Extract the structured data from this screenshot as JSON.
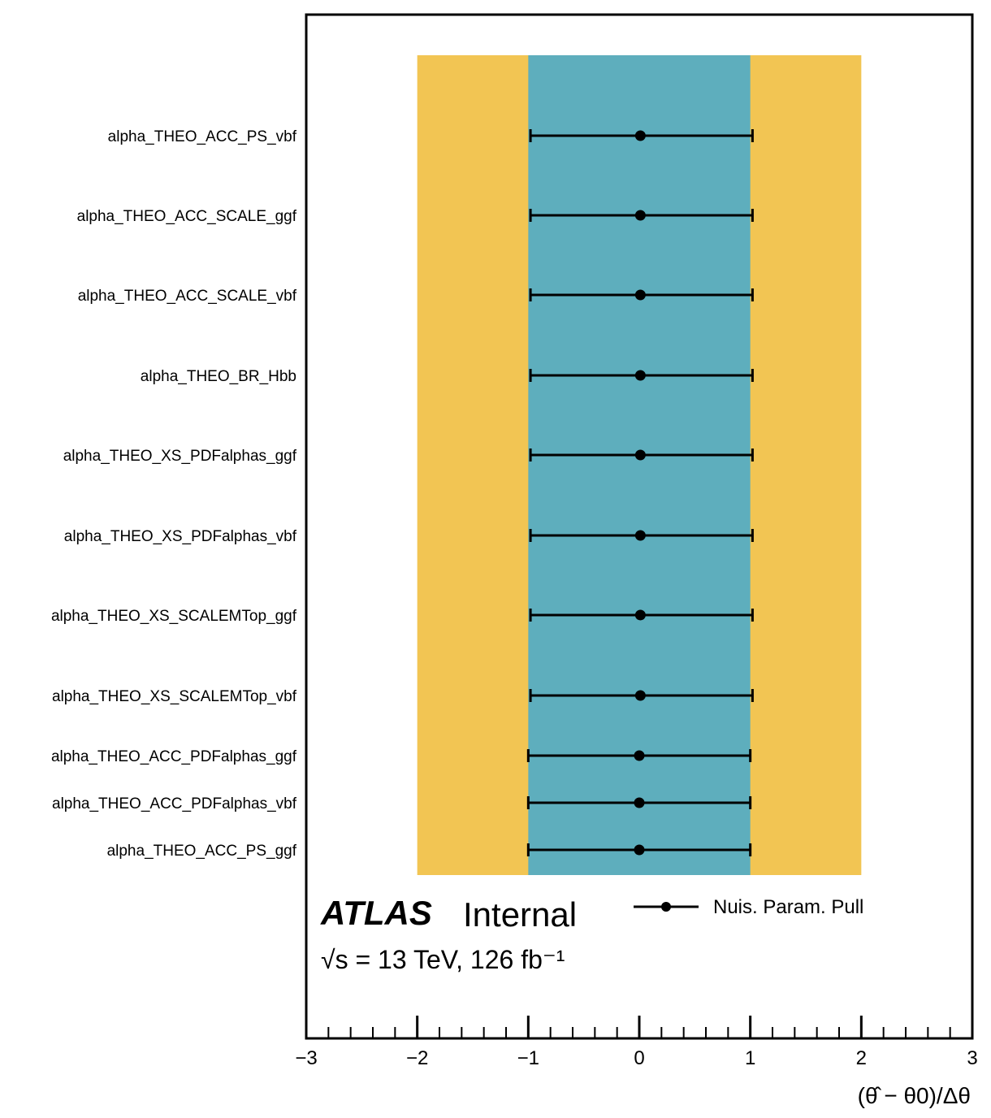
{
  "chart_data": {
    "type": "scatter",
    "xlim": [
      -3,
      3
    ],
    "xticks": [
      "−3",
      "−2",
      "−1",
      "0",
      "1",
      "2",
      "3"
    ],
    "xlabel": "(θ̂ − θ0)/Δθ",
    "bands": [
      {
        "range": [
          -2,
          2
        ],
        "color": "#f2c553"
      },
      {
        "range": [
          -1,
          1
        ],
        "color": "#5eaebd"
      }
    ],
    "series": [
      {
        "name": "Nuis. Param. Pull",
        "color": "#000000"
      }
    ],
    "parameters": [
      {
        "name": "alpha_THEO_ACC_PS_vbf",
        "pull": 0.01,
        "err_low": -0.99,
        "err_high": 1.01
      },
      {
        "name": "alpha_THEO_ACC_SCALE_ggf",
        "pull": 0.01,
        "err_low": -0.99,
        "err_high": 1.01
      },
      {
        "name": "alpha_THEO_ACC_SCALE_vbf",
        "pull": 0.01,
        "err_low": -0.99,
        "err_high": 1.01
      },
      {
        "name": "alpha_THEO_BR_Hbb",
        "pull": 0.01,
        "err_low": -0.99,
        "err_high": 1.01
      },
      {
        "name": "alpha_THEO_XS_PDFalphas_ggf",
        "pull": 0.01,
        "err_low": -0.99,
        "err_high": 1.01
      },
      {
        "name": "alpha_THEO_XS_PDFalphas_vbf",
        "pull": 0.01,
        "err_low": -0.99,
        "err_high": 1.01
      },
      {
        "name": "alpha_THEO_XS_SCALEMTop_ggf",
        "pull": 0.01,
        "err_low": -0.99,
        "err_high": 1.01
      },
      {
        "name": "alpha_THEO_XS_SCALEMTop_vbf",
        "pull": 0.01,
        "err_low": -0.99,
        "err_high": 1.01
      },
      {
        "name": "alpha_THEO_ACC_PDFalphas_ggf",
        "pull": 0.0,
        "err_low": -1.0,
        "err_high": 1.0
      },
      {
        "name": "alpha_THEO_ACC_PDFalphas_vbf",
        "pull": 0.0,
        "err_low": -1.0,
        "err_high": 1.0
      },
      {
        "name": "alpha_THEO_ACC_PS_ggf",
        "pull": 0.0,
        "err_low": -1.0,
        "err_high": 1.0
      }
    ],
    "atlas_label": "ATLAS",
    "atlas_status": "Internal",
    "energy_label": "√s = 13 TeV, 126 fb⁻¹",
    "legend_position": "top-right"
  }
}
